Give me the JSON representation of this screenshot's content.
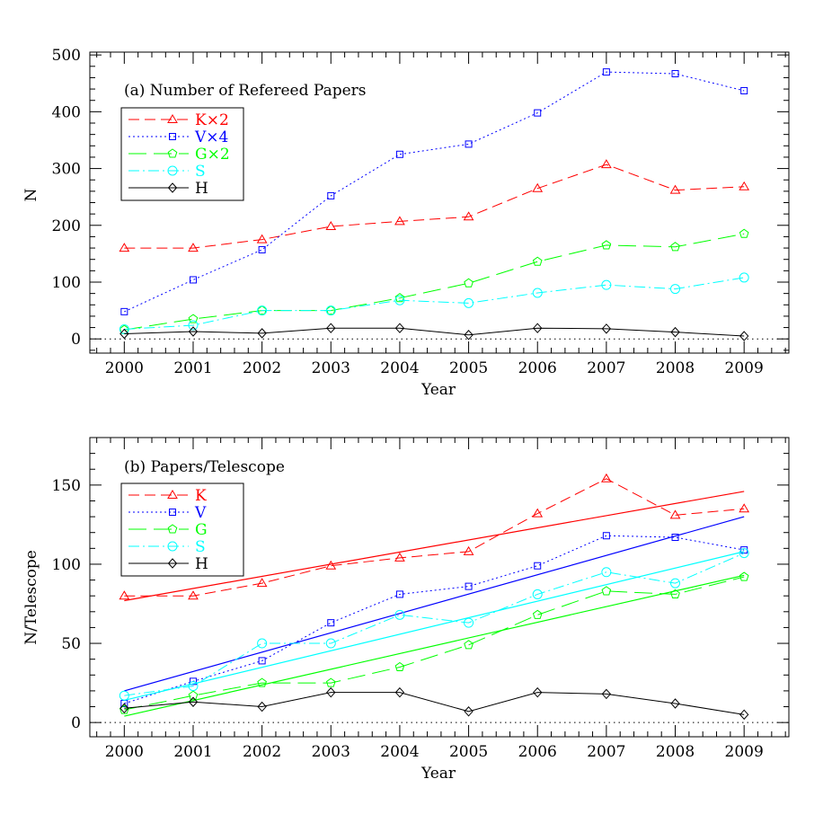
{
  "chart_data": [
    {
      "type": "line",
      "title": "(a) Number of Refereed Papers",
      "xlabel": "Year",
      "ylabel": "N",
      "xlim": [
        1999.5,
        2009.65
      ],
      "ylim": [
        -25,
        505
      ],
      "xticks": [
        "2000",
        "2001",
        "2002",
        "2003",
        "2004",
        "2005",
        "2006",
        "2007",
        "2008",
        "2009"
      ],
      "yticks": [
        "0",
        "100",
        "200",
        "300",
        "400",
        "500"
      ],
      "zero_line": true,
      "legend_position": "top-left",
      "x": [
        2000,
        2001,
        2002,
        2003,
        2004,
        2005,
        2006,
        2007,
        2008,
        2009
      ],
      "series": [
        {
          "name": "K×2",
          "color": "#ff0000",
          "marker": "triangle",
          "dash": "dashed",
          "values": [
            160,
            160,
            175,
            198,
            207,
            215,
            265,
            307,
            262,
            268
          ]
        },
        {
          "name": "V×4",
          "color": "#0000ff",
          "marker": "square",
          "dash": "dotted",
          "values": [
            48,
            104,
            157,
            252,
            325,
            343,
            398,
            470,
            467,
            437
          ]
        },
        {
          "name": "G×2",
          "color": "#00ff00",
          "marker": "pentagon",
          "dash": "longdash",
          "values": [
            16,
            35,
            50,
            50,
            72,
            98,
            136,
            165,
            162,
            185
          ]
        },
        {
          "name": "S",
          "color": "#00ffff",
          "marker": "circle",
          "dash": "dashdot",
          "values": [
            17,
            24,
            50,
            50,
            68,
            63,
            81,
            95,
            88,
            108
          ]
        },
        {
          "name": "H",
          "color": "#000000",
          "marker": "diamond",
          "dash": "solid",
          "values": [
            9,
            13,
            10,
            19,
            19,
            7,
            19,
            18,
            12,
            5
          ]
        }
      ]
    },
    {
      "type": "line",
      "title": "(b) Papers/Telescope",
      "xlabel": "Year",
      "ylabel": "N/Telescope",
      "xlim": [
        1999.5,
        2009.65
      ],
      "ylim": [
        -9,
        180
      ],
      "xticks": [
        "2000",
        "2001",
        "2002",
        "2003",
        "2004",
        "2005",
        "2006",
        "2007",
        "2008",
        "2009"
      ],
      "yticks": [
        "0",
        "50",
        "100",
        "150"
      ],
      "zero_line": true,
      "legend_position": "top-left",
      "x": [
        2000,
        2001,
        2002,
        2003,
        2004,
        2005,
        2006,
        2007,
        2008,
        2009
      ],
      "series": [
        {
          "name": "K",
          "color": "#ff0000",
          "marker": "triangle",
          "dash": "dashed",
          "values": [
            80,
            80,
            88,
            99,
            104,
            108,
            132,
            154,
            131,
            135
          ],
          "fit": [
            77,
            146
          ]
        },
        {
          "name": "V",
          "color": "#0000ff",
          "marker": "square",
          "dash": "dotted",
          "values": [
            12,
            26,
            39,
            63,
            81,
            86,
            99,
            118,
            117,
            109
          ],
          "fit": [
            20,
            130
          ]
        },
        {
          "name": "G",
          "color": "#00ff00",
          "marker": "pentagon",
          "dash": "longdash",
          "values": [
            8,
            17,
            25,
            25,
            35,
            49,
            68,
            83,
            81,
            92
          ],
          "fit": [
            4,
            93
          ]
        },
        {
          "name": "S",
          "color": "#00ffff",
          "marker": "circle",
          "dash": "dashdot",
          "values": [
            17,
            23,
            50,
            50,
            68,
            63,
            81,
            95,
            88,
            107
          ],
          "fit": [
            14,
            108
          ]
        },
        {
          "name": "H",
          "color": "#000000",
          "marker": "diamond",
          "dash": "solid",
          "values": [
            9,
            13,
            10,
            19,
            19,
            7,
            19,
            18,
            12,
            5
          ]
        }
      ]
    }
  ]
}
